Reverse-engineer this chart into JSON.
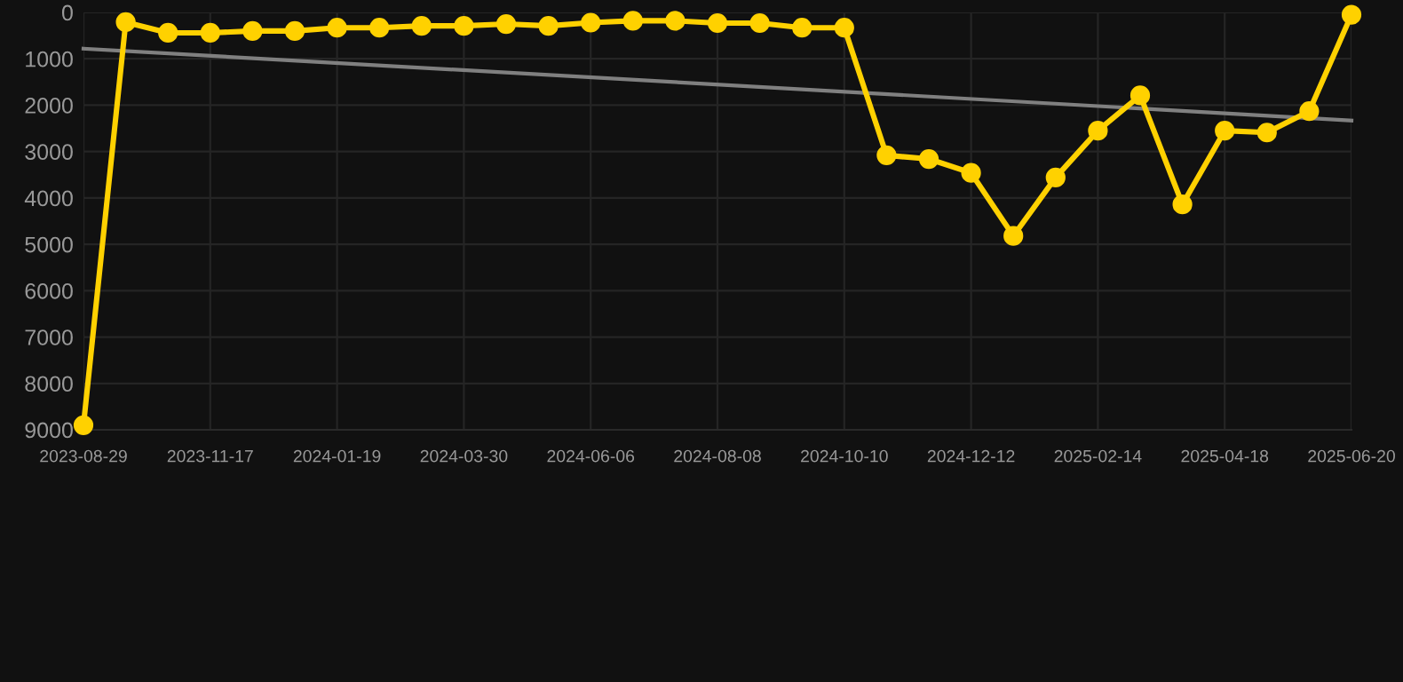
{
  "chart_data": {
    "type": "line",
    "categories": [
      "2023-08-29",
      null,
      null,
      "2023-11-17",
      null,
      null,
      "2024-01-19",
      null,
      null,
      "2024-03-30",
      null,
      null,
      "2024-06-06",
      null,
      null,
      "2024-08-08",
      null,
      null,
      "2024-10-10",
      null,
      null,
      "2024-12-12",
      null,
      null,
      "2025-02-14",
      null,
      null,
      "2025-04-18",
      null,
      null,
      "2025-06-20"
    ],
    "series": [
      {
        "color": "#ffd100",
        "marker": "circle",
        "line_style": "solid",
        "values": [
          8900,
          210,
          440,
          440,
          400,
          400,
          330,
          330,
          290,
          290,
          250,
          290,
          220,
          180,
          180,
          230,
          230,
          330,
          330,
          3080,
          3160,
          3460,
          4820,
          3560,
          2550,
          1790,
          4140,
          2550,
          2590,
          2130,
          50
        ]
      },
      {
        "color": "#808080",
        "marker": "none",
        "line_style": "solid",
        "values": [
          780,
          null,
          null,
          null,
          null,
          null,
          null,
          null,
          null,
          null,
          null,
          null,
          null,
          null,
          null,
          null,
          null,
          null,
          null,
          null,
          null,
          null,
          null,
          null,
          null,
          null,
          null,
          null,
          null,
          null,
          2330
        ]
      }
    ],
    "ylim": [
      9000,
      0
    ],
    "yticks": [
      0,
      1000,
      2000,
      3000,
      4000,
      5000,
      6000,
      7000,
      8000,
      9000
    ],
    "grid": true
  }
}
